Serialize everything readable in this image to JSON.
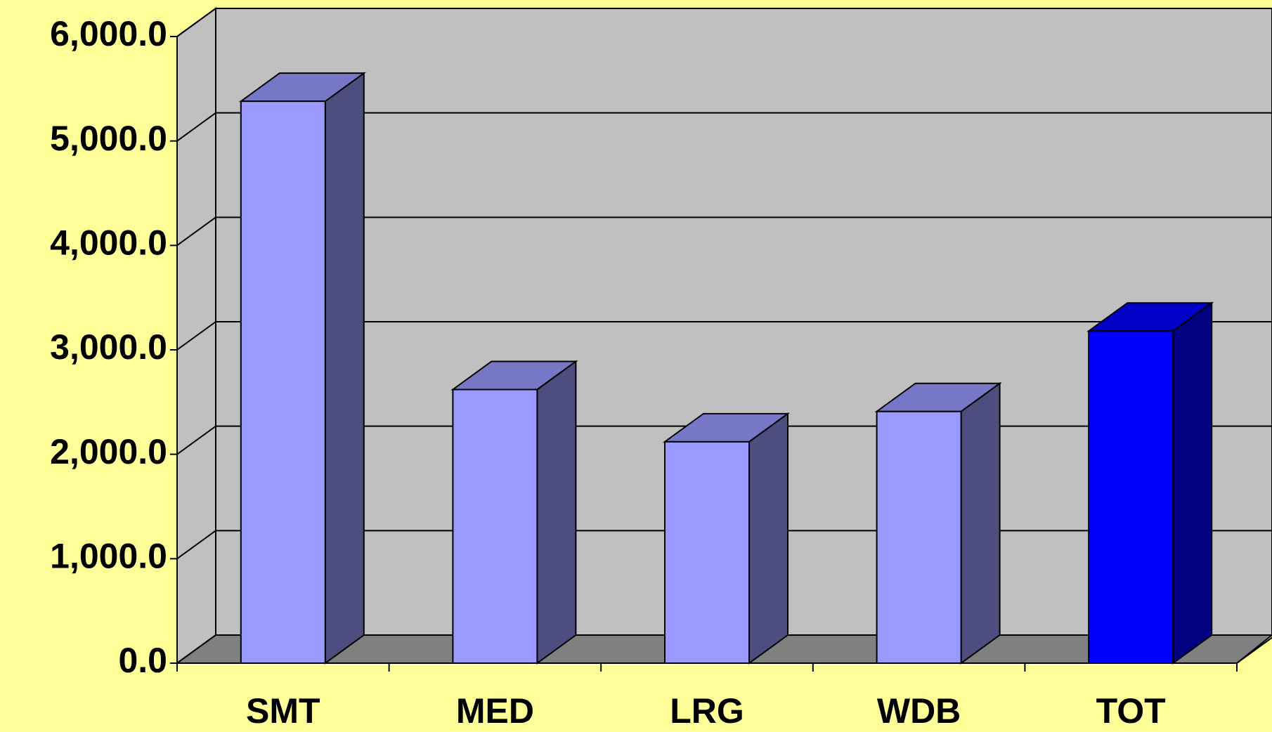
{
  "chart_data": {
    "type": "bar3d",
    "categories": [
      "SMT",
      "MED",
      "LRG",
      "WDB",
      "TOT"
    ],
    "values": [
      5380,
      2620,
      2120,
      2410,
      3180
    ],
    "colors": [
      "#9999ff",
      "#9999ff",
      "#9999ff",
      "#9999ff",
      "#0000ff"
    ],
    "ylim": [
      0,
      6000
    ],
    "yticks": [
      {
        "value": 0,
        "label": "0.0"
      },
      {
        "value": 1000,
        "label": "1,000.0"
      },
      {
        "value": 2000,
        "label": "2,000.0"
      },
      {
        "value": 3000,
        "label": "3,000.0"
      },
      {
        "value": 4000,
        "label": "4,000.0"
      },
      {
        "value": 5000,
        "label": "5,000.0"
      },
      {
        "value": 6000,
        "label": "6,000.0"
      }
    ],
    "grid": true
  }
}
